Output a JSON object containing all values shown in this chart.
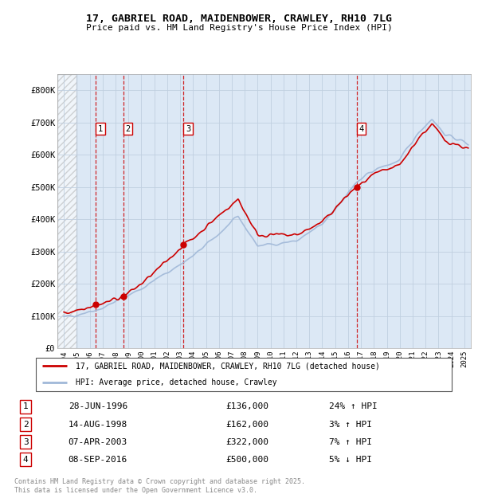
{
  "title": "17, GABRIEL ROAD, MAIDENBOWER, CRAWLEY, RH10 7LG",
  "subtitle": "Price paid vs. HM Land Registry's House Price Index (HPI)",
  "xlim": [
    1993.5,
    2025.5
  ],
  "ylim": [
    0,
    850000
  ],
  "yticks": [
    0,
    100000,
    200000,
    300000,
    400000,
    500000,
    600000,
    700000,
    800000
  ],
  "ytick_labels": [
    "£0",
    "£100K",
    "£200K",
    "£300K",
    "£400K",
    "£500K",
    "£600K",
    "£700K",
    "£800K"
  ],
  "hpi_color": "#a0b8d8",
  "price_color": "#cc0000",
  "grid_color": "#c0cfe0",
  "bg_color": "#dce8f5",
  "hatched_region_end": 1995.0,
  "sale_points": [
    {
      "num": 1,
      "year": 1996.49,
      "price": 136000
    },
    {
      "num": 2,
      "year": 1998.62,
      "price": 162000
    },
    {
      "num": 3,
      "year": 2003.27,
      "price": 322000
    },
    {
      "num": 4,
      "year": 2016.69,
      "price": 500000
    }
  ],
  "legend_entries": [
    {
      "label": "17, GABRIEL ROAD, MAIDENBOWER, CRAWLEY, RH10 7LG (detached house)",
      "color": "#cc0000"
    },
    {
      "label": "HPI: Average price, detached house, Crawley",
      "color": "#a0b8d8"
    }
  ],
  "footnote": "Contains HM Land Registry data © Crown copyright and database right 2025.\nThis data is licensed under the Open Government Licence v3.0.",
  "table_rows": [
    {
      "num": "1",
      "date": "28-JUN-1996",
      "price": "£136,000",
      "pct": "24% ↑ HPI"
    },
    {
      "num": "2",
      "date": "14-AUG-1998",
      "price": "£162,000",
      "pct": "3% ↑ HPI"
    },
    {
      "num": "3",
      "date": "07-APR-2003",
      "price": "£322,000",
      "pct": "7% ↑ HPI"
    },
    {
      "num": "4",
      "date": "08-SEP-2016",
      "price": "£500,000",
      "pct": "5% ↓ HPI"
    }
  ]
}
